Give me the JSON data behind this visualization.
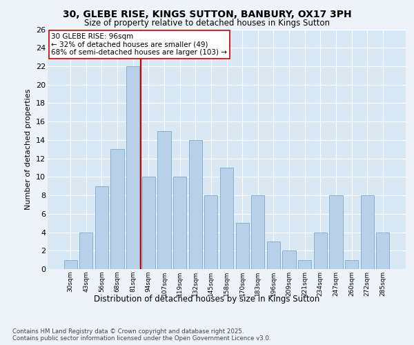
{
  "title_line1": "30, GLEBE RISE, KINGS SUTTON, BANBURY, OX17 3PH",
  "title_line2": "Size of property relative to detached houses in Kings Sutton",
  "xlabel": "Distribution of detached houses by size in Kings Sutton",
  "ylabel": "Number of detached properties",
  "categories": [
    "30sqm",
    "43sqm",
    "56sqm",
    "68sqm",
    "81sqm",
    "94sqm",
    "107sqm",
    "119sqm",
    "132sqm",
    "145sqm",
    "158sqm",
    "170sqm",
    "183sqm",
    "196sqm",
    "209sqm",
    "221sqm",
    "234sqm",
    "247sqm",
    "260sqm",
    "272sqm",
    "285sqm"
  ],
  "values": [
    1,
    4,
    9,
    13,
    22,
    10,
    15,
    10,
    14,
    8,
    11,
    5,
    8,
    3,
    2,
    1,
    4,
    8,
    1,
    8,
    4
  ],
  "bar_color": "#b8d0e8",
  "bar_edge_color": "#7aaac8",
  "marker_index": 5,
  "marker_color": "#cc0000",
  "annotation_line1": "30 GLEBE RISE: 96sqm",
  "annotation_line2": "← 32% of detached houses are smaller (49)",
  "annotation_line3": "68% of semi-detached houses are larger (103) →",
  "footer_text": "Contains HM Land Registry data © Crown copyright and database right 2025.\nContains public sector information licensed under the Open Government Licence v3.0.",
  "ylim": [
    0,
    26
  ],
  "yticks": [
    0,
    2,
    4,
    6,
    8,
    10,
    12,
    14,
    16,
    18,
    20,
    22,
    24,
    26
  ],
  "bg_color": "#d8e8f4",
  "fig_bg_color": "#eef3f9"
}
